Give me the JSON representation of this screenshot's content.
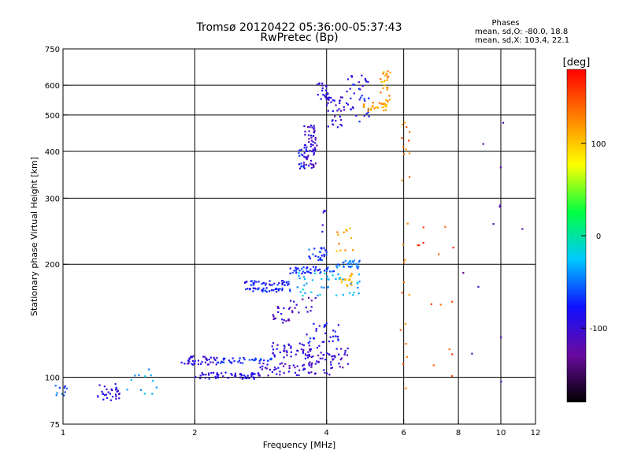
{
  "chart_data": {
    "type": "scatter",
    "title": "Tromsø 20120422 05:36:00-05:37:43",
    "subtitle": "RwPretec (Bp)",
    "xlabel": "Frequency [MHz]",
    "ylabel": "Stationary phase Virtual Height [km]",
    "x_scale": "log",
    "y_scale": "log",
    "xlim": [
      1,
      12
    ],
    "ylim": [
      75,
      750
    ],
    "x_ticks": [
      1,
      2,
      4,
      6,
      8,
      10,
      12
    ],
    "y_ticks": [
      75,
      100,
      200,
      300,
      400,
      500,
      600,
      750
    ],
    "x_gridlines": [
      2,
      4,
      6,
      8,
      10
    ],
    "y_gridlines": [
      100,
      200,
      300,
      400,
      500,
      600
    ],
    "grid": true,
    "phases_box": {
      "title": "Phases",
      "line1": "mean, sd,O: -80.0, 18.8",
      "line2": "mean, sd,X: 103.4, 22.1"
    },
    "colorbar": {
      "label": "[deg]",
      "range": [
        -180,
        180
      ],
      "ticks": [
        100,
        0,
        -100
      ],
      "colormap": [
        "#000000",
        "#6a0aa0",
        "#1010ff",
        "#00c8ff",
        "#00ff40",
        "#ffff00",
        "#ff8000",
        "#ff0000"
      ]
    },
    "point_color_default": "#1a50e0",
    "clusters": [
      {
        "x": [
          0.95,
          1.02
        ],
        "y": [
          88,
          96
        ],
        "n": 10,
        "phase": -60
      },
      {
        "x": [
          1.2,
          1.35
        ],
        "y": [
          86,
          96
        ],
        "n": 30,
        "phase": -95
      },
      {
        "x": [
          1.4,
          1.7
        ],
        "y": [
          88,
          108
        ],
        "n": 12,
        "phase": -40
      },
      {
        "x": [
          1.85,
          2.25
        ],
        "y": [
          108,
          114
        ],
        "n": 40,
        "phase": -100
      },
      {
        "x": [
          2.25,
          3.0
        ],
        "y": [
          109,
          113
        ],
        "n": 40,
        "phase": -70
      },
      {
        "x": [
          3.0,
          3.7
        ],
        "y": [
          112,
          124
        ],
        "n": 45,
        "phase": -95
      },
      {
        "x": [
          2.0,
          2.8
        ],
        "y": [
          99,
          103
        ],
        "n": 55,
        "phase": -95
      },
      {
        "x": [
          2.8,
          4.2
        ],
        "y": [
          101,
          110
        ],
        "n": 55,
        "phase": -100
      },
      {
        "x": [
          3.6,
          4.5
        ],
        "y": [
          106,
          120
        ],
        "n": 45,
        "phase": -105
      },
      {
        "x": [
          3.6,
          4.3
        ],
        "y": [
          120,
          140
        ],
        "n": 30,
        "phase": -80
      },
      {
        "x": [
          3.0,
          3.35
        ],
        "y": [
          135,
          155
        ],
        "n": 20,
        "phase": -105
      },
      {
        "x": [
          3.3,
          3.8
        ],
        "y": [
          148,
          168
        ],
        "n": 15,
        "phase": -110
      },
      {
        "x": [
          2.6,
          3.3
        ],
        "y": [
          176,
          181
        ],
        "n": 40,
        "phase": -80
      },
      {
        "x": [
          2.6,
          3.3
        ],
        "y": [
          169,
          173
        ],
        "n": 35,
        "phase": -75
      },
      {
        "x": [
          3.3,
          4.2
        ],
        "y": [
          189,
          197
        ],
        "n": 45,
        "phase": -70
      },
      {
        "x": [
          3.6,
          4.0
        ],
        "y": [
          205,
          222
        ],
        "n": 25,
        "phase": -65
      },
      {
        "x": [
          3.4,
          4.8
        ],
        "y": [
          165,
          190
        ],
        "n": 45,
        "phase": -30
      },
      {
        "x": [
          4.2,
          4.8
        ],
        "y": [
          195,
          205
        ],
        "n": 30,
        "phase": -50
      },
      {
        "x": [
          4.3,
          4.6
        ],
        "y": [
          175,
          190
        ],
        "n": 18,
        "phase": 110
      },
      {
        "x": [
          4.2,
          4.6
        ],
        "y": [
          210,
          250
        ],
        "n": 12,
        "phase": 115
      },
      {
        "x": [
          3.9,
          4.0
        ],
        "y": [
          240,
          300
        ],
        "n": 5,
        "phase": -85
      },
      {
        "x": [
          3.55,
          3.8
        ],
        "y": [
          360,
          470
        ],
        "n": 65,
        "phase": -105
      },
      {
        "x": [
          3.45,
          3.6
        ],
        "y": [
          360,
          410
        ],
        "n": 18,
        "phase": -80
      },
      {
        "x": [
          3.8,
          4.05
        ],
        "y": [
          550,
          610
        ],
        "n": 22,
        "phase": -90
      },
      {
        "x": [
          4.0,
          4.4
        ],
        "y": [
          460,
          560
        ],
        "n": 35,
        "phase": -100
      },
      {
        "x": [
          4.4,
          5.0
        ],
        "y": [
          480,
          640
        ],
        "n": 40,
        "phase": -85
      },
      {
        "x": [
          4.8,
          5.5
        ],
        "y": [
          510,
          540
        ],
        "n": 30,
        "phase": 115
      },
      {
        "x": [
          5.3,
          5.6
        ],
        "y": [
          540,
          660
        ],
        "n": 25,
        "phase": 120
      },
      {
        "x": [
          5.9,
          6.2
        ],
        "y": [
          90,
          500
        ],
        "n": 25,
        "phase": 135
      },
      {
        "x": [
          6.3,
          7.8
        ],
        "y": [
          90,
          260
        ],
        "n": 14,
        "phase": 150
      },
      {
        "x": [
          7.8,
          11.5
        ],
        "y": [
          90,
          500
        ],
        "n": 12,
        "phase": -120
      }
    ]
  }
}
